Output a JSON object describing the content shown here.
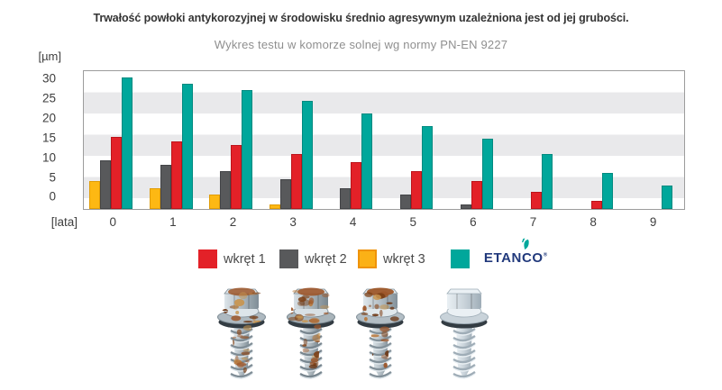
{
  "chart_data": {
    "type": "bar",
    "title": "Trwałość powłoki antykorozyjnej w środowisku średnio agresywnym uzależniona jest od jej grubości.",
    "subtitle": "Wykres testu w komorze solnej wg normy PN-EN 9227",
    "ylabel": "[µm]",
    "xlabel": "[lata]",
    "categories": [
      "0",
      "1",
      "2",
      "3",
      "4",
      "5",
      "6",
      "7",
      "8",
      "9"
    ],
    "series": [
      {
        "name": "wkręt 3",
        "color": "#fdb813",
        "edge": "#e09c06",
        "values": [
          6.5,
          5,
          3.5,
          1,
          0,
          0,
          0,
          0,
          0,
          0
        ]
      },
      {
        "name": "wkręt 2",
        "color": "#58595b",
        "edge": "#434447",
        "values": [
          11.5,
          10.5,
          9,
          7,
          5,
          3.5,
          1,
          0,
          0,
          0
        ]
      },
      {
        "name": "wkręt 1",
        "color": "#e32128",
        "edge": "#bc141b",
        "values": [
          17,
          16,
          15,
          13,
          11,
          9,
          6.5,
          4,
          2,
          0
        ]
      },
      {
        "name": "ETANCO",
        "color": "#00a79b",
        "edge": "#008a80",
        "values": [
          31,
          29.5,
          28,
          25.5,
          22.5,
          19.5,
          16.5,
          13,
          8.5,
          5.5
        ]
      }
    ],
    "yticks": [
      0,
      5,
      10,
      15,
      20,
      25,
      30
    ],
    "ylim": [
      0,
      32.5
    ],
    "grid": "horizontal-stripes",
    "stripe_bands": [
      [
        2.5,
        7.5
      ],
      [
        12.5,
        17.5
      ],
      [
        22.5,
        27.5
      ]
    ],
    "legend_position": "bottom"
  },
  "legend": {
    "items": [
      {
        "label": "wkręt 1",
        "color": "#e32128",
        "type": "swatch"
      },
      {
        "label": "wkręt 2",
        "color": "#58595b",
        "type": "swatch"
      },
      {
        "label": "wkręt 3",
        "color": "#fbb116",
        "border": "#ef9309",
        "type": "swatch"
      },
      {
        "label": "ETANCO",
        "color": "#00a79b",
        "type": "logo"
      }
    ]
  },
  "logo": {
    "text": "ETANCO",
    "reg_mark": "®",
    "text_color": "#21397c",
    "icon": "etanco-swoosh-icon",
    "icon_color": "#00a79b"
  },
  "screws": [
    {
      "id": "screw-1",
      "condition": "heavily-corroded"
    },
    {
      "id": "screw-2",
      "condition": "heavily-corroded"
    },
    {
      "id": "screw-3",
      "condition": "corroded"
    },
    {
      "id": "screw-4",
      "condition": "clean"
    }
  ]
}
